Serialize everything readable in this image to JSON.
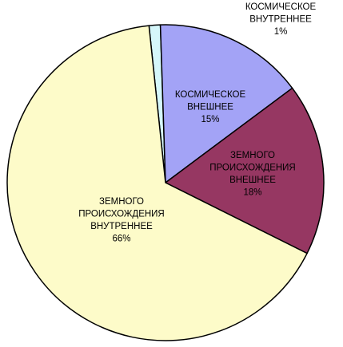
{
  "chart_data": {
    "type": "pie",
    "title": "",
    "start_angle_deg": -6,
    "slices": [
      {
        "name": "КОСМИЧЕСКОЕ ВНУТРЕННЕЕ",
        "label_lines": [
          "КОСМИЧЕСКОЕ",
          "ВНУТРЕННЕЕ"
        ],
        "percent_label": "1%",
        "value": 1.15,
        "color": "#d5f7fb"
      },
      {
        "name": "КОСМИЧЕСКОЕ ВНЕШНЕЕ",
        "label_lines": [
          "КОСМИЧЕСКОЕ",
          "ВНЕШНЕЕ"
        ],
        "percent_label": "15%",
        "value": 15.3,
        "color": "#a3a3f6"
      },
      {
        "name": "ЗЕМНОГО ПРОИСХОЖДЕНИЯ ВНЕШНЕЕ",
        "label_lines": [
          "ЗЕМНОГО",
          "ПРОИСХОЖДЕНИЯ",
          "ВНЕШНЕЕ"
        ],
        "percent_label": "18%",
        "value": 17.6,
        "color": "#963762"
      },
      {
        "name": "ЗЕМНОГО ПРОИСХОЖДЕНИЯ ВНУТРЕННЕЕ",
        "label_lines": [
          "ЗЕМНОГО",
          "ПРОИСХОЖДЕНИЯ",
          "ВНУТРЕННЕЕ"
        ],
        "percent_label": "66%",
        "value": 65.95,
        "color": "#fdfbc9"
      }
    ]
  }
}
